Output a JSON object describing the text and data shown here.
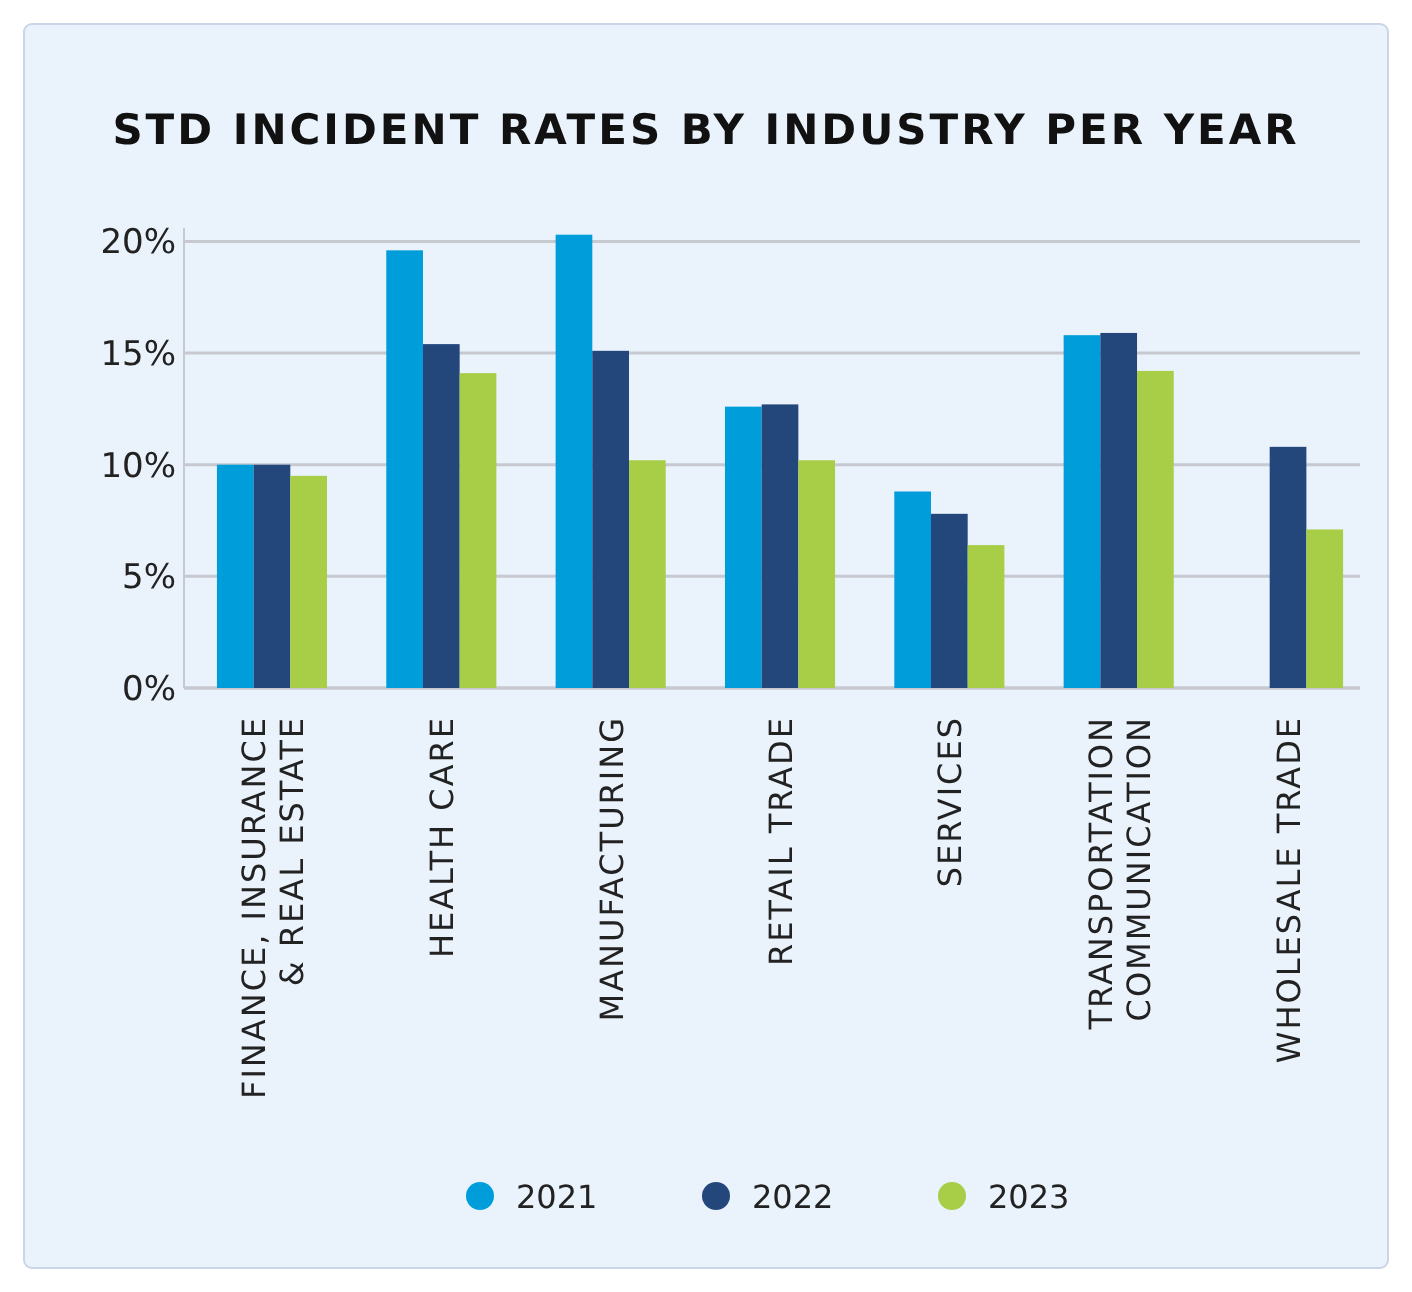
{
  "chart_data": {
    "type": "bar",
    "title": "STD INCIDENT RATES BY INDUSTRY PER YEAR",
    "categories": [
      "FINANCE, INSURANCE\n& REAL ESTATE",
      "HEALTH CARE",
      "MANUFACTURING",
      "RETAIL TRADE",
      "SERVICES",
      "TRANSPORTATION\nCOMMUNICATION",
      "WHOLESALE TRADE"
    ],
    "series": [
      {
        "name": "2021",
        "color": "#009ddb",
        "values": [
          10.0,
          19.6,
          20.3,
          12.6,
          8.8,
          15.8,
          null
        ]
      },
      {
        "name": "2022",
        "color": "#23477a",
        "values": [
          10.0,
          15.4,
          15.1,
          12.7,
          7.8,
          15.9,
          10.8
        ]
      },
      {
        "name": "2023",
        "color": "#a8cd47",
        "values": [
          9.5,
          14.1,
          10.2,
          10.2,
          6.4,
          14.2,
          7.1
        ]
      }
    ],
    "ylim": [
      0,
      20.6
    ],
    "yticks": [
      {
        "value": 0,
        "label": "0%"
      },
      {
        "value": 5,
        "label": "5%"
      },
      {
        "value": 10,
        "label": "10%"
      },
      {
        "value": 15,
        "label": "15%"
      },
      {
        "value": 20,
        "label": "20%"
      }
    ],
    "grid": "y",
    "legend": "bottom"
  }
}
